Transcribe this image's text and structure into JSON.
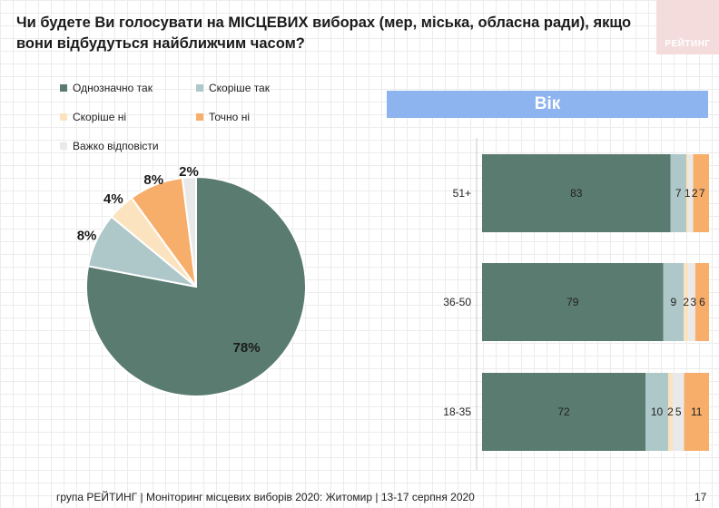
{
  "title": "Чи будете Ви голосувати на МІСЦЕВИХ виборах (мер, міська, обласна ради), якщо вони відбудуться найближчим часом?",
  "logo_text": "РЕЙТИНГ",
  "age_header": "Вік",
  "footer": "група РЕЙТИНГ | Моніторинг місцевих виборів 2020: Житомир | 13-17 серпня 2020",
  "page_number": "17",
  "colors": {
    "definitely_yes": "#5a7b70",
    "rather_yes": "#aec7c9",
    "rather_no": "#fce3c0",
    "definitely_no": "#f7ae6b",
    "hard_to_say": "#e9e9e9",
    "header": "#8db4ef"
  },
  "chart_data": [
    {
      "type": "pie",
      "legend": [
        "Однозначно так",
        "Скоріше  так",
        "Скоріше  ні",
        "Точно ні",
        "Важко відповісти"
      ],
      "legend_placement": "top",
      "slices": [
        {
          "name": "Однозначно так",
          "value": 78,
          "label": "78%"
        },
        {
          "name": "Скоріше  так",
          "value": 8,
          "label": "8%"
        },
        {
          "name": "Скоріше  ні",
          "value": 4,
          "label": "4%"
        },
        {
          "name": "Точно ні",
          "value": 8,
          "label": "8%"
        },
        {
          "name": "Важко відповісти",
          "value": 2,
          "label": "2%"
        }
      ]
    },
    {
      "type": "bar",
      "orientation": "horizontal",
      "stacked": true,
      "title": "Вік",
      "categories": [
        "51+",
        "36-50",
        "18-35"
      ],
      "xlim": [
        0,
        100
      ],
      "series": [
        {
          "name": "Однозначно так",
          "values": [
            83,
            79,
            72
          ]
        },
        {
          "name": "Скоріше  так",
          "values": [
            7,
            9,
            10
          ]
        },
        {
          "name": "Скоріше  ні",
          "values": [
            1,
            2,
            2
          ]
        },
        {
          "name": "Важко відповісти",
          "values": [
            2,
            3,
            5
          ]
        },
        {
          "name": "Точно ні",
          "values": [
            7,
            6,
            11
          ]
        }
      ]
    }
  ]
}
